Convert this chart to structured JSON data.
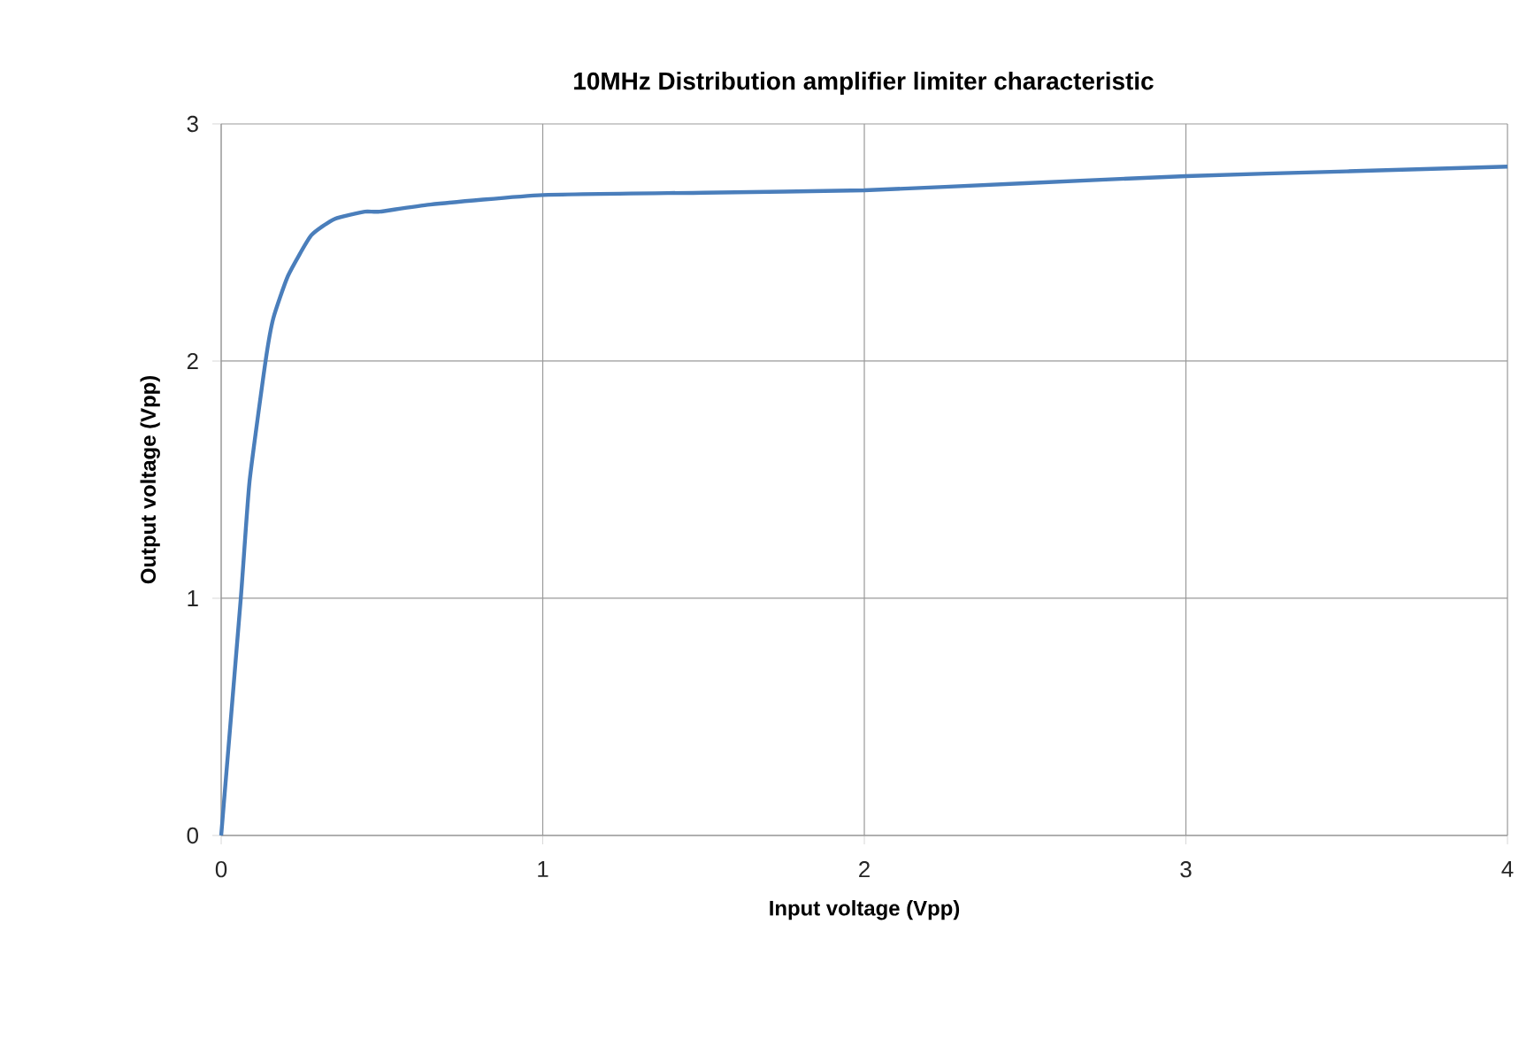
{
  "chart_data": {
    "type": "line",
    "title": "10MHz Distribution amplifier limiter characteristic",
    "xlabel": "Input voltage (Vpp)",
    "ylabel": "Output voltage (Vpp)",
    "x": [
      0,
      0.061,
      0.088,
      0.138,
      0.162,
      0.208,
      0.28,
      0.354,
      0.447,
      0.493,
      0.65,
      1.0,
      1.5,
      2.0,
      2.5,
      3.0,
      3.5,
      4.0
    ],
    "series": [
      {
        "color": "#4a7ebb",
        "values": [
          0,
          1.0,
          1.49,
          2.0,
          2.18,
          2.36,
          2.53,
          2.6,
          2.63,
          2.63,
          2.66,
          2.7,
          2.71,
          2.72,
          2.75,
          2.78,
          2.8,
          2.82
        ]
      }
    ],
    "xlim": [
      0,
      4
    ],
    "ylim": [
      0,
      3
    ],
    "xticks": [
      0,
      1,
      2,
      3,
      4
    ],
    "yticks": [
      0,
      1,
      2,
      3
    ],
    "grid": true,
    "marker": "none",
    "line_style": "solid"
  }
}
